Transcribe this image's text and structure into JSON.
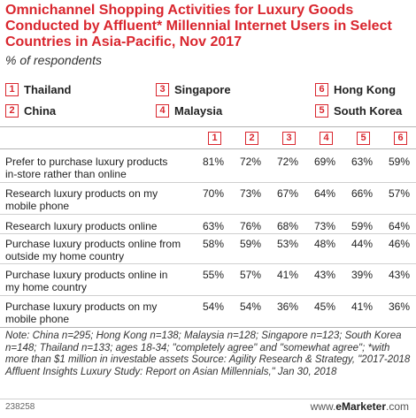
{
  "title": "Omnichannel Shopping Activities for Luxury Goods Conducted by Affluent* Millennial Internet Users in Select Countries in Asia-Pacific, Nov 2017",
  "subtitle": "% of respondents",
  "colors": {
    "accent": "#d9262e"
  },
  "legend": [
    {
      "num": "1",
      "label": "Thailand"
    },
    {
      "num": "2",
      "label": "China"
    },
    {
      "num": "3",
      "label": "Singapore"
    },
    {
      "num": "4",
      "label": "Malaysia"
    },
    {
      "num": "6",
      "label": "Hong Kong"
    },
    {
      "num": "5",
      "label": "South Korea"
    }
  ],
  "chart_data": {
    "type": "table",
    "columns": [
      "1",
      "2",
      "3",
      "4",
      "5",
      "6"
    ],
    "rows": [
      {
        "label": "Prefer to purchase luxury products in-store rather than online",
        "values": [
          "81%",
          "72%",
          "72%",
          "69%",
          "63%",
          "59%"
        ]
      },
      {
        "label": "Research luxury products on my mobile phone",
        "values": [
          "70%",
          "73%",
          "67%",
          "64%",
          "66%",
          "57%"
        ]
      },
      {
        "label": "Research luxury products online",
        "values": [
          "63%",
          "76%",
          "68%",
          "73%",
          "59%",
          "64%"
        ]
      },
      {
        "label": "Purchase luxury products online from outside my home country",
        "values": [
          "58%",
          "59%",
          "53%",
          "48%",
          "44%",
          "46%"
        ]
      },
      {
        "label": "Purchase luxury products online in my home country",
        "values": [
          "55%",
          "57%",
          "41%",
          "43%",
          "39%",
          "43%"
        ]
      },
      {
        "label": "Purchase luxury products on my mobile phone",
        "values": [
          "54%",
          "54%",
          "36%",
          "45%",
          "41%",
          "36%"
        ]
      }
    ]
  },
  "note": "Note: China n=295; Hong Kong n=138; Malaysia n=128; Singapore n=123; South Korea n=148; Thailand n=133; ages 18-34; \"completely agree\" and \"somewhat agree\"; *with more than $1 million in investable assets Source: Agility Research & Strategy, \"2017-2018 Affluent Insights Luxury Study: Report on Asian Millennials,\" Jan 30, 2018",
  "footer": {
    "id": "238258",
    "brand_prefix": "www.",
    "brand_bold": "eMarketer",
    "brand_suffix": ".com"
  }
}
